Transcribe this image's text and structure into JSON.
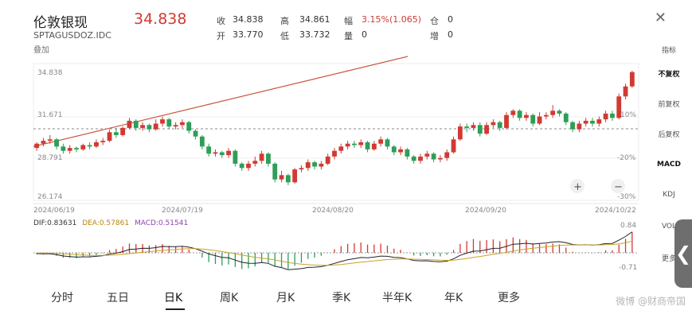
{
  "header": {
    "name": "伦敦银现",
    "price": "34.838",
    "code": "SPTAGUSDOZ.IDC",
    "overlay": "叠加",
    "quotes": [
      {
        "label": "收",
        "value": "34.838"
      },
      {
        "label": "高",
        "value": "34.861"
      },
      {
        "label": "幅",
        "value": "3.15%(1.065)"
      },
      {
        "label": "仓",
        "value": "0"
      },
      {
        "label": "开",
        "value": "33.770"
      },
      {
        "label": "低",
        "value": "33.732"
      },
      {
        "label": "量",
        "value": "0"
      },
      {
        "label": "增",
        "value": "0"
      }
    ],
    "close_icon": "close-icon"
  },
  "sidebar": {
    "items": [
      "指标",
      "不复权",
      "前复权",
      "后复权",
      "MACD",
      "KDJ",
      "VOL",
      "更多"
    ]
  },
  "chart": {
    "price_ticks": [
      "34.838",
      "31.671",
      "28.791",
      "26.174"
    ],
    "pct_ticks": [
      "10%",
      "-20%",
      "-30%"
    ],
    "date_ticks": [
      "2024/06/19",
      "2024/07/19",
      "2024/08/20",
      "2024/09/20",
      "2024/10/22"
    ],
    "zoom_in": "+",
    "zoom_out": "−"
  },
  "macd": {
    "dif_label": "DIF:0.83631",
    "dea_label": "DEA:0.57861",
    "macd_label": "MACD:0.51541",
    "top_tick": "0.84",
    "bottom_tick": "-0.71"
  },
  "tabs": [
    "分时",
    "五日",
    "日K",
    "周K",
    "月K",
    "季K",
    "半年K",
    "年K",
    "更多"
  ],
  "active_tab": "日K",
  "watermark": "微博 @财商帝国",
  "colors": {
    "up": "#d03a33",
    "down": "#2e9e58",
    "trend": "#c8553a"
  },
  "chart_data": {
    "type": "candlestick",
    "x": [
      "2024/06/19",
      "2024/07/19",
      "2024/08/20",
      "2024/09/20",
      "2024/10/22"
    ],
    "ylim": [
      26.174,
      34.838
    ],
    "candles": [
      [
        29.5,
        29.8,
        29.3,
        29.9
      ],
      [
        29.8,
        30.0,
        29.6,
        30.2
      ],
      [
        30.0,
        30.1,
        29.8,
        30.4
      ],
      [
        30.1,
        29.6,
        29.4,
        30.2
      ],
      [
        29.6,
        29.3,
        29.1,
        29.8
      ],
      [
        29.3,
        29.5,
        29.1,
        29.7
      ],
      [
        29.5,
        29.4,
        29.2,
        29.6
      ],
      [
        29.4,
        29.7,
        29.3,
        29.8
      ],
      [
        29.7,
        29.6,
        29.4,
        29.9
      ],
      [
        29.6,
        29.9,
        29.5,
        30.1
      ],
      [
        29.9,
        30.0,
        29.7,
        30.2
      ],
      [
        30.0,
        30.6,
        29.9,
        30.8
      ],
      [
        30.6,
        30.4,
        30.2,
        30.9
      ],
      [
        30.4,
        30.9,
        30.3,
        31.0
      ],
      [
        30.9,
        31.4,
        30.8,
        31.6
      ],
      [
        31.4,
        30.9,
        30.7,
        31.5
      ],
      [
        30.9,
        31.1,
        30.7,
        31.3
      ],
      [
        31.1,
        30.8,
        30.6,
        31.2
      ],
      [
        30.8,
        31.2,
        30.7,
        31.5
      ],
      [
        31.2,
        31.5,
        31.0,
        31.7
      ],
      [
        31.5,
        31.0,
        30.8,
        31.6
      ],
      [
        31.0,
        31.1,
        30.8,
        31.3
      ],
      [
        31.1,
        31.3,
        30.9,
        31.5
      ],
      [
        31.3,
        30.7,
        30.5,
        31.4
      ],
      [
        30.7,
        30.3,
        30.1,
        30.8
      ],
      [
        30.3,
        29.6,
        29.4,
        30.4
      ],
      [
        29.6,
        29.1,
        28.9,
        29.8
      ],
      [
        29.1,
        29.2,
        28.9,
        29.4
      ],
      [
        29.2,
        29.0,
        28.8,
        29.3
      ],
      [
        29.0,
        29.3,
        28.8,
        29.5
      ],
      [
        29.3,
        28.4,
        28.2,
        29.4
      ],
      [
        28.4,
        28.1,
        27.9,
        28.5
      ],
      [
        28.1,
        28.4,
        27.9,
        28.6
      ],
      [
        28.4,
        28.6,
        28.2,
        28.9
      ],
      [
        28.6,
        29.1,
        28.4,
        29.3
      ],
      [
        29.1,
        28.4,
        28.2,
        29.2
      ],
      [
        28.4,
        27.3,
        27.1,
        28.5
      ],
      [
        27.3,
        27.6,
        27.1,
        27.9
      ],
      [
        27.6,
        27.1,
        26.9,
        27.7
      ],
      [
        27.1,
        28.0,
        27.0,
        28.1
      ],
      [
        28.0,
        28.1,
        27.8,
        28.3
      ],
      [
        28.1,
        28.5,
        27.9,
        28.7
      ],
      [
        28.5,
        28.2,
        28.0,
        28.6
      ],
      [
        28.2,
        28.4,
        28.0,
        28.6
      ],
      [
        28.4,
        28.9,
        28.3,
        29.1
      ],
      [
        28.9,
        29.3,
        28.7,
        29.5
      ],
      [
        29.3,
        29.6,
        29.1,
        29.8
      ],
      [
        29.6,
        29.8,
        29.4,
        30.0
      ],
      [
        29.8,
        29.7,
        29.5,
        30.0
      ],
      [
        29.7,
        29.9,
        29.5,
        30.1
      ],
      [
        29.9,
        29.4,
        29.2,
        30.0
      ],
      [
        29.4,
        29.8,
        29.3,
        30.0
      ],
      [
        29.8,
        30.1,
        29.6,
        30.3
      ],
      [
        30.1,
        29.6,
        29.4,
        30.2
      ],
      [
        29.6,
        29.2,
        29.0,
        29.7
      ],
      [
        29.2,
        29.4,
        29.0,
        29.6
      ],
      [
        29.4,
        28.9,
        28.7,
        29.5
      ],
      [
        28.9,
        28.6,
        28.4,
        29.0
      ],
      [
        28.6,
        28.9,
        28.4,
        29.1
      ],
      [
        28.9,
        29.1,
        28.7,
        29.3
      ],
      [
        29.1,
        28.7,
        28.5,
        29.2
      ],
      [
        28.7,
        28.8,
        28.5,
        29.0
      ],
      [
        28.8,
        29.2,
        28.6,
        29.4
      ],
      [
        29.2,
        30.1,
        29.1,
        30.3
      ],
      [
        30.1,
        31.0,
        30.0,
        31.2
      ],
      [
        31.0,
        30.9,
        30.6,
        31.2
      ],
      [
        30.9,
        31.1,
        30.7,
        31.3
      ],
      [
        31.1,
        30.5,
        30.3,
        31.3
      ],
      [
        30.5,
        31.1,
        30.4,
        31.3
      ],
      [
        31.1,
        31.3,
        30.9,
        31.5
      ],
      [
        31.3,
        30.9,
        30.7,
        31.4
      ],
      [
        30.9,
        31.8,
        30.8,
        32.0
      ],
      [
        31.8,
        32.1,
        31.6,
        32.2
      ],
      [
        32.1,
        31.6,
        31.4,
        32.2
      ],
      [
        31.6,
        31.8,
        31.4,
        32.0
      ],
      [
        31.8,
        31.2,
        31.0,
        31.9
      ],
      [
        31.2,
        31.7,
        31.1,
        32.0
      ],
      [
        31.7,
        31.8,
        31.5,
        32.0
      ],
      [
        31.8,
        32.1,
        31.6,
        32.5
      ],
      [
        32.1,
        31.9,
        31.7,
        32.2
      ],
      [
        31.9,
        31.3,
        31.1,
        32.0
      ],
      [
        31.3,
        30.8,
        30.6,
        31.4
      ],
      [
        30.8,
        31.2,
        30.6,
        31.4
      ],
      [
        31.2,
        31.4,
        31.0,
        31.6
      ],
      [
        31.4,
        31.2,
        31.0,
        31.6
      ],
      [
        31.2,
        31.5,
        31.0,
        31.7
      ],
      [
        31.5,
        31.9,
        31.3,
        32.1
      ],
      [
        31.9,
        31.6,
        31.4,
        32.1
      ],
      [
        31.6,
        33.1,
        31.5,
        33.3
      ],
      [
        33.1,
        33.8,
        32.9,
        34.0
      ],
      [
        33.8,
        34.8,
        33.7,
        34.9
      ]
    ],
    "macd": {
      "dif": 0.83631,
      "dea": 0.57861,
      "macd": 0.51541,
      "range": [
        -0.71,
        0.84
      ]
    }
  }
}
